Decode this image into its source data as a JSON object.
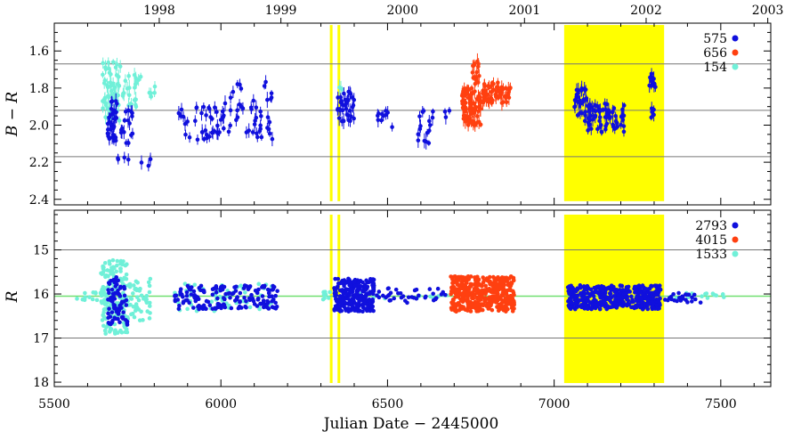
{
  "chart_data": {
    "type": "scatter",
    "xlabel": "Julian Date − 2445000",
    "xlim": [
      5500,
      7650
    ],
    "x_ticks": [
      5500,
      6000,
      6500,
      7000,
      7500
    ],
    "x_tick_labels": [
      "5500",
      "6000",
      "6500",
      "7000",
      "7500"
    ],
    "top_axis_years": [
      {
        "label": "1998",
        "x": 5815
      },
      {
        "label": "1999",
        "x": 6180
      },
      {
        "label": "2000",
        "x": 6545
      },
      {
        "label": "2001",
        "x": 6911
      },
      {
        "label": "2002",
        "x": 7276
      },
      {
        "label": "2003",
        "x": 7641
      }
    ],
    "highlight_band": {
      "x0": 7030,
      "x1": 7330,
      "color": "#ffff00"
    },
    "vertical_lines": [
      6331,
      6354
    ],
    "colors": {
      "blue": "#1010dd",
      "red": "#ff4010",
      "cyan": "#70f0d8",
      "green": "#70e070"
    },
    "panels": [
      {
        "id": "top",
        "ylabel": "B − R",
        "ylim": [
          2.43,
          1.45
        ],
        "y_ticks": [
          1.6,
          1.8,
          2.0,
          2.2,
          2.4
        ],
        "y_tick_labels": [
          "1.6",
          "1.8",
          "2.0",
          "2.2",
          "2.4"
        ],
        "hlines": [
          1.67,
          1.92,
          2.17
        ],
        "band_y": [
          1.46,
          2.41
        ],
        "error_bars": true,
        "legend": [
          {
            "count": "575",
            "color": "#1010dd"
          },
          {
            "count": "656",
            "color": "#ff4010"
          },
          {
            "count": "154",
            "color": "#70f0d8"
          }
        ],
        "series": [
          {
            "name": "cyan",
            "color": "#70f0d8",
            "segments": [
              {
                "x0": 5645,
                "x1": 5700,
                "y0": 1.66,
                "y1": 1.98,
                "n": 60
              },
              {
                "x0": 5700,
                "x1": 5760,
                "y0": 1.72,
                "y1": 1.92,
                "n": 22
              },
              {
                "x0": 5780,
                "x1": 5810,
                "y0": 1.78,
                "y1": 1.86,
                "n": 5
              },
              {
                "x0": 6348,
                "x1": 6390,
                "y0": 1.78,
                "y1": 1.86,
                "n": 3
              }
            ]
          },
          {
            "name": "blue",
            "color": "#1010dd",
            "segments": [
              {
                "x0": 5660,
                "x1": 5690,
                "y0": 1.86,
                "y1": 2.1,
                "n": 35
              },
              {
                "x0": 5690,
                "x1": 5735,
                "y0": 1.92,
                "y1": 2.2,
                "n": 22
              },
              {
                "x0": 5760,
                "x1": 5790,
                "y0": 2.17,
                "y1": 2.22,
                "n": 4
              },
              {
                "x0": 5860,
                "x1": 6010,
                "y0": 1.9,
                "y1": 2.08,
                "n": 40
              },
              {
                "x0": 6010,
                "x1": 6160,
                "y0": 1.76,
                "y1": 2.08,
                "n": 45
              },
              {
                "x0": 6350,
                "x1": 6400,
                "y0": 1.82,
                "y1": 1.98,
                "n": 35
              },
              {
                "x0": 6470,
                "x1": 6520,
                "y0": 1.92,
                "y1": 2.02,
                "n": 10
              },
              {
                "x0": 6580,
                "x1": 6640,
                "y0": 1.92,
                "y1": 2.1,
                "n": 16
              },
              {
                "x0": 6670,
                "x1": 6700,
                "y0": 1.9,
                "y1": 1.96,
                "n": 3
              },
              {
                "x0": 7060,
                "x1": 7100,
                "y0": 1.8,
                "y1": 1.98,
                "n": 30
              },
              {
                "x0": 7100,
                "x1": 7210,
                "y0": 1.88,
                "y1": 2.04,
                "n": 70
              },
              {
                "x0": 7285,
                "x1": 7305,
                "y0": 1.72,
                "y1": 1.8,
                "n": 12
              },
              {
                "x0": 7290,
                "x1": 7305,
                "y0": 1.9,
                "y1": 1.97,
                "n": 5
              }
            ]
          },
          {
            "name": "red",
            "color": "#ff4010",
            "segments": [
              {
                "x0": 6720,
                "x1": 6780,
                "y0": 1.8,
                "y1": 2.0,
                "n": 90
              },
              {
                "x0": 6755,
                "x1": 6775,
                "y0": 1.65,
                "y1": 1.8,
                "n": 15
              },
              {
                "x0": 6780,
                "x1": 6870,
                "y0": 1.77,
                "y1": 1.88,
                "n": 60
              }
            ]
          }
        ]
      },
      {
        "id": "bottom",
        "ylabel": "R",
        "ylim": [
          18.1,
          14.1
        ],
        "y_ticks": [
          15,
          16,
          17,
          18
        ],
        "y_tick_labels": [
          "15",
          "16",
          "17",
          "18"
        ],
        "hlines": [
          15,
          17
        ],
        "baseline": {
          "y": 16.05,
          "color": "#70e070"
        },
        "band_y": [
          14.2,
          18.02
        ],
        "error_bars": false,
        "legend": [
          {
            "count": "2793",
            "color": "#1010dd"
          },
          {
            "count": "4015",
            "color": "#ff4010"
          },
          {
            "count": "1533",
            "color": "#70f0d8"
          }
        ],
        "series": [
          {
            "name": "cyan",
            "color": "#70f0d8",
            "segments": [
              {
                "x0": 5560,
                "x1": 5640,
                "y0": 15.95,
                "y1": 16.15,
                "n": 12
              },
              {
                "x0": 5640,
                "x1": 5720,
                "y0": 15.2,
                "y1": 16.9,
                "n": 170
              },
              {
                "x0": 5720,
                "x1": 5790,
                "y0": 15.6,
                "y1": 16.6,
                "n": 50
              },
              {
                "x0": 5860,
                "x1": 6160,
                "y0": 15.75,
                "y1": 16.4,
                "n": 60
              },
              {
                "x0": 6290,
                "x1": 6345,
                "y0": 15.95,
                "y1": 16.15,
                "n": 8
              },
              {
                "x0": 6400,
                "x1": 6680,
                "y0": 16.0,
                "y1": 16.1,
                "n": 12
              },
              {
                "x0": 7340,
                "x1": 7550,
                "y0": 15.98,
                "y1": 16.1,
                "n": 16
              }
            ]
          },
          {
            "name": "blue",
            "color": "#1010dd",
            "segments": [
              {
                "x0": 5660,
                "x1": 5720,
                "y0": 15.6,
                "y1": 16.7,
                "n": 80
              },
              {
                "x0": 5860,
                "x1": 6170,
                "y0": 15.8,
                "y1": 16.35,
                "n": 170
              },
              {
                "x0": 6340,
                "x1": 6460,
                "y0": 15.65,
                "y1": 16.4,
                "n": 260
              },
              {
                "x0": 6460,
                "x1": 6680,
                "y0": 15.85,
                "y1": 16.2,
                "n": 40
              },
              {
                "x0": 7040,
                "x1": 7320,
                "y0": 15.8,
                "y1": 16.35,
                "n": 450
              },
              {
                "x0": 7320,
                "x1": 7440,
                "y0": 15.95,
                "y1": 16.2,
                "n": 25
              }
            ]
          },
          {
            "name": "red",
            "color": "#ff4010",
            "segments": [
              {
                "x0": 6690,
                "x1": 6880,
                "y0": 15.6,
                "y1": 16.4,
                "n": 420
              }
            ]
          }
        ]
      }
    ]
  }
}
